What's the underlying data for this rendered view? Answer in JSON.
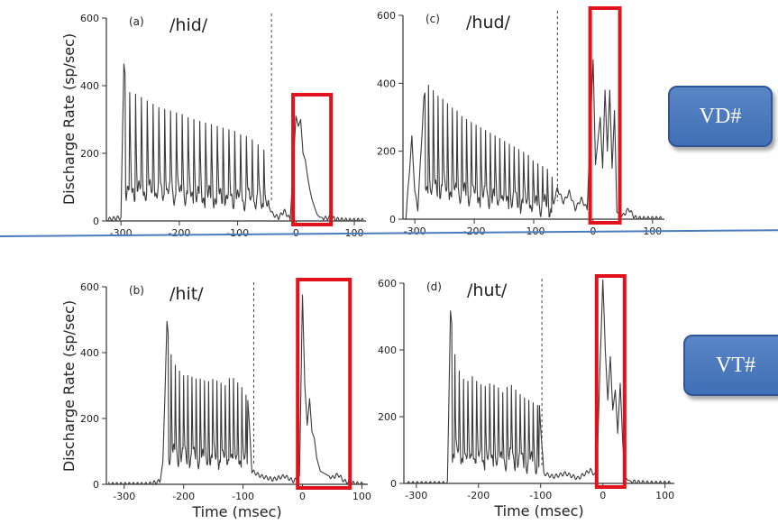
{
  "colors": {
    "trace": "#3a3a3a",
    "highlight": "#e3111b",
    "tag_fill": "#4a79bf",
    "divider": "#4a7bbf"
  },
  "tags": {
    "vd": "VD#",
    "vt": "VT#"
  },
  "shared": {
    "ylabel": "Discharge Rate (sp/sec)",
    "xlabel": "Time (msec)"
  },
  "chart_data": [
    {
      "id": "a",
      "type": "line",
      "panel_label": "(a)",
      "title": "/hid/",
      "xlim": [
        -325,
        120
      ],
      "ylim": [
        0,
        600
      ],
      "xticks": [
        -300,
        -200,
        -100,
        0,
        100
      ],
      "yticks": [
        0,
        200,
        400,
        600
      ],
      "ylabel": "Discharge Rate (sp/sec)",
      "xlabel": "",
      "dashed_marker_x": -42,
      "highlight_window": [
        -5,
        60
      ],
      "series": [
        {
          "voicing_start": -295,
          "voicing_end": -45,
          "glottal_period": 10,
          "x": [
            -320,
            -310,
            -300,
            -295,
            -290,
            -280,
            -270,
            -260,
            -250,
            -240,
            -230,
            -220,
            -210,
            -200,
            -190,
            -180,
            -170,
            -160,
            -150,
            -140,
            -130,
            -120,
            -110,
            -100,
            -90,
            -80,
            -70,
            -60,
            -50,
            -45,
            -40,
            -30,
            -20,
            -10,
            0,
            4,
            8,
            12,
            16,
            20,
            24,
            28,
            32,
            36,
            40,
            50,
            60,
            70,
            80,
            90,
            100
          ],
          "y": [
            5,
            8,
            10,
            470,
            380,
            380,
            370,
            360,
            350,
            340,
            330,
            330,
            320,
            320,
            310,
            300,
            300,
            290,
            290,
            280,
            280,
            270,
            270,
            260,
            250,
            250,
            230,
            220,
            200,
            40,
            20,
            10,
            30,
            5,
            310,
            280,
            300,
            200,
            180,
            130,
            90,
            60,
            40,
            20,
            12,
            8,
            10,
            5,
            3,
            2,
            2
          ]
        }
      ]
    },
    {
      "id": "c",
      "type": "line",
      "panel_label": "(c)",
      "title": "/hud/",
      "xlim": [
        -320,
        120
      ],
      "ylim": [
        0,
        600
      ],
      "xticks": [
        -300,
        -200,
        -100,
        0,
        100
      ],
      "yticks": [
        0,
        200,
        400,
        600
      ],
      "ylabel": "",
      "xlabel": "",
      "dashed_marker_x": -60,
      "highlight_window": [
        -5,
        45
      ],
      "series": [
        {
          "voicing_start": -285,
          "voicing_end": -65,
          "glottal_period": 8,
          "x": [
            -315,
            -305,
            -300,
            -295,
            -285,
            -280,
            -270,
            -260,
            -250,
            -240,
            -230,
            -220,
            -210,
            -200,
            -190,
            -180,
            -170,
            -160,
            -150,
            -140,
            -130,
            -120,
            -110,
            -100,
            -90,
            -80,
            -70,
            -65,
            -60,
            -50,
            -40,
            -30,
            -20,
            -10,
            0,
            4,
            8,
            12,
            16,
            20,
            24,
            28,
            32,
            36,
            40,
            50,
            60,
            70,
            80
          ],
          "y": [
            5,
            240,
            80,
            30,
            350,
            400,
            380,
            360,
            350,
            330,
            320,
            300,
            290,
            280,
            270,
            260,
            250,
            240,
            230,
            220,
            210,
            200,
            190,
            170,
            160,
            150,
            140,
            60,
            90,
            50,
            80,
            30,
            60,
            30,
            470,
            160,
            230,
            300,
            150,
            380,
            200,
            380,
            150,
            320,
            20,
            10,
            30,
            5,
            2
          ]
        }
      ]
    },
    {
      "id": "b",
      "type": "line",
      "panel_label": "(b)",
      "title": "/hit/",
      "xlim": [
        -330,
        110
      ],
      "ylim": [
        0,
        600
      ],
      "xticks": [
        -300,
        -200,
        -100,
        0,
        100
      ],
      "yticks": [
        0,
        200,
        400,
        600
      ],
      "ylabel": "Discharge Rate (sp/sec)",
      "xlabel": "Time (msec)",
      "dashed_marker_x": -82,
      "highlight_window": [
        -8,
        80
      ],
      "series": [
        {
          "voicing_start": -228,
          "voicing_end": -92,
          "glottal_period": 7,
          "x": [
            -330,
            -320,
            -300,
            -280,
            -260,
            -240,
            -235,
            -228,
            -220,
            -210,
            -200,
            -190,
            -180,
            -170,
            -160,
            -150,
            -140,
            -130,
            -120,
            -110,
            -100,
            -92,
            -85,
            -70,
            -50,
            -30,
            -15,
            -5,
            0,
            4,
            8,
            12,
            16,
            20,
            24,
            30,
            40,
            50,
            60,
            70,
            80,
            90,
            100
          ],
          "y": [
            0,
            0,
            0,
            0,
            0,
            10,
            60,
            490,
            380,
            350,
            330,
            330,
            320,
            320,
            310,
            320,
            310,
            300,
            330,
            310,
            290,
            260,
            40,
            25,
            15,
            25,
            10,
            20,
            575,
            300,
            180,
            260,
            160,
            140,
            80,
            40,
            30,
            20,
            30,
            10,
            5,
            2,
            1
          ]
        }
      ]
    },
    {
      "id": "d",
      "type": "line",
      "panel_label": "(d)",
      "title": "/hut/",
      "xlim": [
        -320,
        115
      ],
      "ylim": [
        0,
        600
      ],
      "xticks": [
        -300,
        -200,
        -100,
        0,
        100
      ],
      "yticks": [
        0,
        200,
        400,
        600
      ],
      "ylabel": "",
      "xlabel": "Time (msec)",
      "dashed_marker_x": -98,
      "highlight_window": [
        -10,
        35
      ],
      "series": [
        {
          "voicing_start": -245,
          "voicing_end": -102,
          "glottal_period": 7,
          "x": [
            -320,
            -300,
            -260,
            -250,
            -245,
            -240,
            -230,
            -220,
            -210,
            -200,
            -190,
            -180,
            -170,
            -160,
            -150,
            -140,
            -130,
            -120,
            -110,
            -102,
            -95,
            -80,
            -60,
            -40,
            -20,
            -10,
            0,
            4,
            8,
            12,
            16,
            20,
            24,
            28,
            32,
            36,
            40,
            50,
            60,
            80
          ],
          "y": [
            0,
            0,
            0,
            0,
            520,
            400,
            330,
            300,
            320,
            300,
            290,
            300,
            290,
            270,
            300,
            280,
            260,
            250,
            240,
            230,
            30,
            20,
            30,
            15,
            40,
            20,
            610,
            400,
            250,
            380,
            220,
            280,
            150,
            300,
            120,
            20,
            10,
            5,
            3,
            1
          ]
        }
      ]
    }
  ]
}
